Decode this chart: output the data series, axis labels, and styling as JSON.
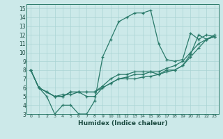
{
  "title": "",
  "xlabel": "Humidex (Indice chaleur)",
  "xlim": [
    -0.5,
    23.5
  ],
  "ylim": [
    3,
    15.5
  ],
  "xticks": [
    0,
    1,
    2,
    3,
    4,
    5,
    6,
    7,
    8,
    9,
    10,
    11,
    12,
    13,
    14,
    15,
    16,
    17,
    18,
    19,
    20,
    21,
    22,
    23
  ],
  "yticks": [
    3,
    4,
    5,
    6,
    7,
    8,
    9,
    10,
    11,
    12,
    13,
    14,
    15
  ],
  "bg_color": "#cce9e9",
  "line_color": "#2a7a6a",
  "grid_color": "#aad4d4",
  "lines": [
    {
      "x": [
        0,
        1,
        2,
        3,
        4,
        5,
        6,
        7,
        8,
        9,
        10,
        11,
        12,
        13,
        14,
        15,
        16,
        17,
        18,
        19,
        20,
        21,
        22,
        23
      ],
      "y": [
        8,
        6,
        5,
        3,
        4,
        4,
        3,
        3,
        4.5,
        9.5,
        11.5,
        13.5,
        14,
        14.5,
        14.5,
        14.8,
        11,
        9.2,
        9,
        9.2,
        12.2,
        11.5,
        12,
        11.8
      ]
    },
    {
      "x": [
        0,
        1,
        2,
        3,
        4,
        5,
        6,
        7,
        8,
        9,
        10,
        11,
        12,
        13,
        14,
        15,
        16,
        17,
        18,
        19,
        20,
        21,
        22,
        23
      ],
      "y": [
        8,
        6,
        5.5,
        5,
        5,
        5.5,
        5.5,
        5,
        5,
        6,
        6.5,
        7,
        7,
        7,
        7.2,
        7.3,
        7.5,
        8,
        8,
        8.5,
        9.5,
        10.5,
        11.5,
        12
      ]
    },
    {
      "x": [
        0,
        1,
        2,
        3,
        4,
        5,
        6,
        7,
        8,
        9,
        10,
        11,
        12,
        13,
        14,
        15,
        16,
        17,
        18,
        19,
        20,
        21,
        22,
        23
      ],
      "y": [
        8,
        6,
        5.5,
        5,
        5.2,
        5.2,
        5.5,
        5.5,
        5.5,
        6.2,
        7,
        7.5,
        7.5,
        7.8,
        7.8,
        7.8,
        7.8,
        8.2,
        8.5,
        9,
        10,
        11,
        11.5,
        11.8
      ]
    },
    {
      "x": [
        0,
        1,
        2,
        3,
        4,
        5,
        6,
        7,
        8,
        9,
        10,
        11,
        12,
        13,
        14,
        15,
        16,
        17,
        18,
        19,
        20,
        21,
        22,
        23
      ],
      "y": [
        8,
        6,
        5.5,
        5,
        5,
        5.5,
        5.5,
        5.5,
        5.5,
        6,
        6.5,
        7,
        7.2,
        7.5,
        7.5,
        7.8,
        7.5,
        7.8,
        8,
        8.5,
        9.8,
        12,
        11.5,
        11.8
      ]
    }
  ]
}
